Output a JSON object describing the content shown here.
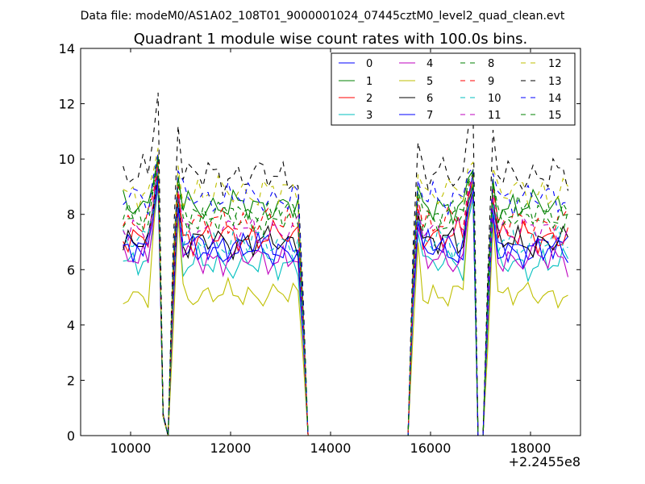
{
  "chart_data": {
    "type": "line",
    "suptitle": "Data file: modeM0/AS1A02_108T01_9000001024_07445cztM0_level2_quad_clean.evt",
    "title": "Quadrant 1 module wise count rates with 100.0s bins.",
    "xlabel": "",
    "ylabel": "",
    "x_offset_label": "+2.2455e8",
    "xlim": [
      9000,
      19000
    ],
    "ylim": [
      0,
      14
    ],
    "xticks": [
      10000,
      12000,
      14000,
      16000,
      18000
    ],
    "yticks": [
      0,
      2,
      4,
      6,
      8,
      10,
      12,
      14
    ],
    "legend_location": "upper-right",
    "x": [
      9850,
      9950,
      10050,
      10150,
      10250,
      10350,
      10450,
      10550,
      10650,
      10750,
      10850,
      10950,
      11050,
      11150,
      11250,
      11350,
      11450,
      11550,
      11650,
      11750,
      11850,
      11950,
      12050,
      12150,
      12250,
      12350,
      12450,
      12550,
      12650,
      12750,
      12850,
      12950,
      13050,
      13150,
      13250,
      13350,
      13450,
      13550,
      13650,
      13750,
      13850,
      13950,
      14050,
      14150,
      14250,
      14350,
      14450,
      14550,
      14650,
      14750,
      14850,
      14950,
      15050,
      15150,
      15250,
      15350,
      15450,
      15550,
      15650,
      15750,
      15850,
      15950,
      16050,
      16150,
      16250,
      16350,
      16450,
      16550,
      16650,
      16750,
      16850,
      16950,
      17050,
      17150,
      17250,
      17350,
      17450,
      17550,
      17650,
      17750,
      17850,
      17950,
      18050,
      18150,
      18250,
      18350,
      18450,
      18550,
      18650,
      18750
    ],
    "segments": [
      {
        "from": 9850,
        "to": 10550,
        "kind": "active"
      },
      {
        "from": 10650,
        "to": 10750,
        "kind": "drop"
      },
      {
        "from": 10850,
        "to": 13450,
        "kind": "active"
      },
      {
        "from": 13550,
        "to": 15550,
        "kind": "zero"
      },
      {
        "from": 15650,
        "to": 16850,
        "kind": "active"
      },
      {
        "from": 16950,
        "to": 17050,
        "kind": "zero"
      },
      {
        "from": 17150,
        "to": 18750,
        "kind": "active"
      }
    ],
    "series": [
      {
        "name": "0",
        "base": 6.8,
        "amp": 0.35,
        "peak": 10.0,
        "color": "#0000ff",
        "dash": "solid"
      },
      {
        "name": "1",
        "base": 8.3,
        "amp": 0.35,
        "peak": 10.1,
        "color": "#008000",
        "dash": "solid"
      },
      {
        "name": "2",
        "base": 7.2,
        "amp": 0.35,
        "peak": 9.7,
        "color": "#ff0000",
        "dash": "solid"
      },
      {
        "name": "3",
        "base": 6.2,
        "amp": 0.35,
        "peak": 9.0,
        "color": "#00bfbf",
        "dash": "solid"
      },
      {
        "name": "4",
        "base": 6.4,
        "amp": 0.35,
        "peak": 9.2,
        "color": "#bf00bf",
        "dash": "solid"
      },
      {
        "name": "5",
        "base": 5.1,
        "amp": 0.3,
        "peak": 9.8,
        "color": "#bfbf00",
        "dash": "solid"
      },
      {
        "name": "6",
        "base": 7.0,
        "amp": 0.35,
        "peak": 9.5,
        "color": "#000000",
        "dash": "solid"
      },
      {
        "name": "7",
        "base": 6.7,
        "amp": 0.35,
        "peak": 9.3,
        "color": "#0000ff",
        "dash": "solid"
      },
      {
        "name": "8",
        "base": 7.9,
        "amp": 0.35,
        "peak": 10.0,
        "color": "#008000",
        "dash": "dashed"
      },
      {
        "name": "9",
        "base": 7.7,
        "amp": 0.35,
        "peak": 9.9,
        "color": "#ff0000",
        "dash": "dashed"
      },
      {
        "name": "10",
        "base": 7.0,
        "amp": 0.35,
        "peak": 9.6,
        "color": "#00bfbf",
        "dash": "dashed"
      },
      {
        "name": "11",
        "base": 7.4,
        "amp": 0.35,
        "peak": 9.8,
        "color": "#bf00bf",
        "dash": "dashed"
      },
      {
        "name": "12",
        "base": 8.8,
        "amp": 0.35,
        "peak": 10.4,
        "color": "#bfbf00",
        "dash": "dashed"
      },
      {
        "name": "13",
        "base": 9.4,
        "amp": 0.4,
        "peak": 12.4,
        "color": "#000000",
        "dash": "dashed"
      },
      {
        "name": "14",
        "base": 8.6,
        "amp": 0.35,
        "peak": 10.2,
        "color": "#0000ff",
        "dash": "dashed"
      },
      {
        "name": "15",
        "base": 8.0,
        "amp": 0.35,
        "peak": 10.1,
        "color": "#008000",
        "dash": "dashed"
      }
    ]
  }
}
